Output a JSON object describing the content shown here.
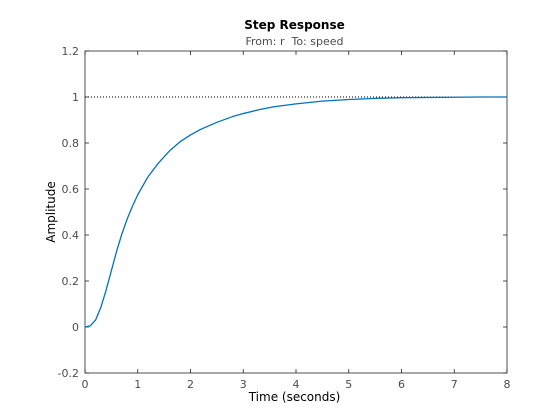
{
  "chart_data": {
    "type": "line",
    "title": "Step Response",
    "subtitle": "From: r  To: speed",
    "xlabel": "Time (seconds)",
    "ylabel": "Amplitude",
    "xlim": [
      0,
      8
    ],
    "ylim": [
      -0.2,
      1.2
    ],
    "xticks": [
      "0",
      "1",
      "2",
      "3",
      "4",
      "5",
      "6",
      "7",
      "8"
    ],
    "yticks": [
      "-0.2",
      "0",
      "0.2",
      "0.4",
      "0.6",
      "0.8",
      "1",
      "1.2"
    ],
    "grid": false,
    "reference_line": {
      "y": 1,
      "style": "dotted"
    },
    "series": [
      {
        "x": [
          0,
          0.1,
          0.2,
          0.3,
          0.4,
          0.5,
          0.6,
          0.7,
          0.8,
          0.9,
          1.0,
          1.2,
          1.4,
          1.6,
          1.8,
          2.0,
          2.2,
          2.5,
          2.8,
          3.0,
          3.3,
          3.6,
          4.0,
          4.5,
          5.0,
          5.5,
          6.0,
          6.5,
          7.0,
          7.5,
          8.0
        ],
        "y": [
          0,
          0.005,
          0.03,
          0.085,
          0.16,
          0.245,
          0.33,
          0.405,
          0.47,
          0.525,
          0.575,
          0.655,
          0.715,
          0.765,
          0.805,
          0.835,
          0.86,
          0.89,
          0.915,
          0.928,
          0.945,
          0.958,
          0.97,
          0.982,
          0.989,
          0.994,
          0.997,
          0.998,
          0.999,
          1.0,
          1.0
        ]
      }
    ],
    "colors": {
      "line": "#0072bd",
      "axes": "#262626",
      "reference": "#000000",
      "tick_text": "#4d4d4d"
    }
  }
}
